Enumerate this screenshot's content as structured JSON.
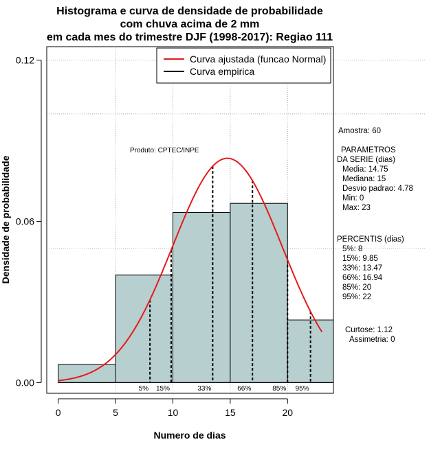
{
  "chart_data": {
    "type": "histogram",
    "title": [
      "Histograma e curva de densidade de probabilidade",
      "com chuva acima de 2 mm",
      "em cada mes do trimestre DJF (1998-2017): Regiao 111"
    ],
    "xlabel": "Numero de dias",
    "ylabel": "Densidade de probabilidade",
    "xlim": [
      -1,
      24
    ],
    "ylim": [
      -0.004,
      0.125
    ],
    "x_ticks": [
      0,
      5,
      10,
      15,
      20
    ],
    "y_ticks": [
      0.0,
      0.06,
      0.12
    ],
    "y_tick_labels": [
      "0.00",
      "0.06",
      "0.12"
    ],
    "bins": [
      {
        "from": 0,
        "to": 5,
        "density": 0.0067
      },
      {
        "from": 5,
        "to": 10,
        "density": 0.04
      },
      {
        "from": 10,
        "to": 15,
        "density": 0.0633
      },
      {
        "from": 15,
        "to": 20,
        "density": 0.0667
      },
      {
        "from": 20,
        "to": 24,
        "density": 0.0233
      }
    ],
    "normal_fit": {
      "mean": 14.75,
      "sd": 4.78,
      "x_from": 0,
      "x_to": 23
    },
    "percentile_lines": [
      {
        "label": "5%",
        "x": 8
      },
      {
        "label": "15%",
        "x": 9.85
      },
      {
        "label": "33%",
        "x": 13.47
      },
      {
        "label": "66%",
        "x": 16.94
      },
      {
        "label": "85%",
        "x": 20
      },
      {
        "label": "95%",
        "x": 22
      }
    ],
    "legend": [
      {
        "label": "Curva ajustada (funcao Normal)",
        "color": "#e41a1c"
      },
      {
        "label": "Curva empirica",
        "color": "#000000"
      }
    ],
    "legend_position": "top-right",
    "hgrid_values": [
      0.12,
      0.1,
      0.05
    ],
    "vgrid_values": [
      5,
      10,
      15,
      20
    ],
    "colors": {
      "bar_fill": "#b7cfcf",
      "curve": "#e41a1c",
      "grid": "#b0b0b0"
    }
  },
  "annotations": {
    "produto": "Produto: CPTEC/INPE",
    "amostra": "Amostra: 60",
    "parametros_header": "PARAMETROS",
    "serie_header": "DA SERIE (dias)",
    "parametros": [
      "Media: 14.75",
      "Mediana: 15",
      "Desvio padrao: 4.78",
      "Min: 0",
      "Max: 23"
    ],
    "percentis_header": "PERCENTIS (dias)",
    "percentis": [
      "5%: 8",
      "15%: 9.85",
      "33%: 13.47",
      "66%: 16.94",
      "85%: 20",
      "95%: 22"
    ],
    "curtose": "Curtose: 1.12",
    "assimetria": "Assimetria: 0"
  }
}
